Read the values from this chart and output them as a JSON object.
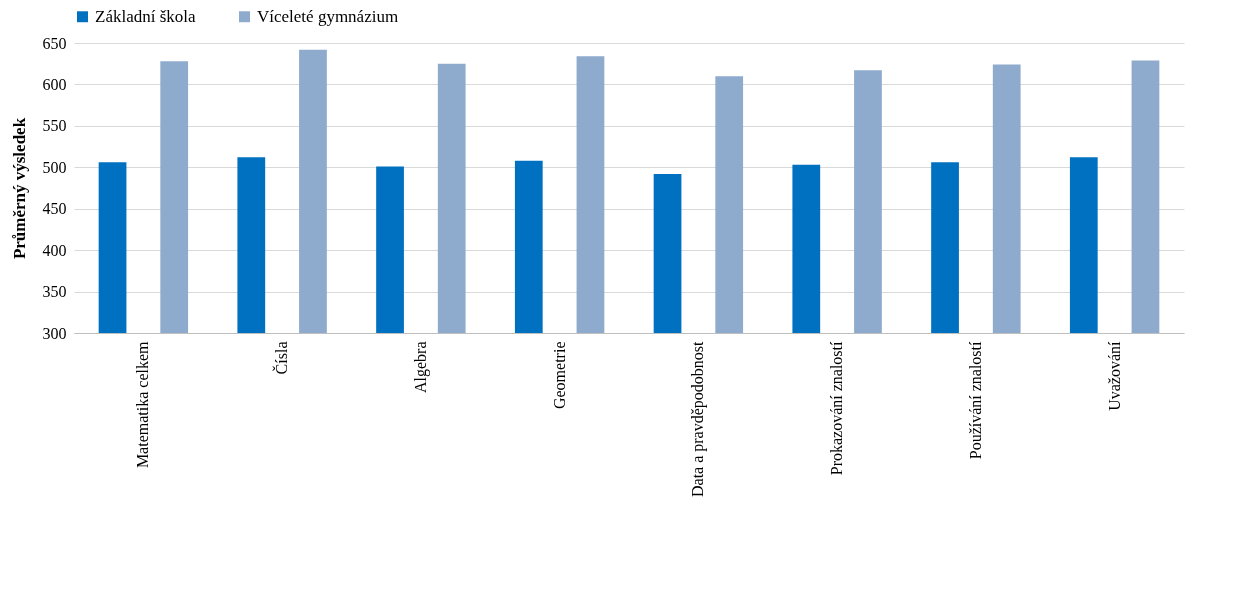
{
  "chart_data": {
    "type": "bar",
    "ylabel": "Průměrný výsledek",
    "categories": [
      "Matematika celkem",
      "Čísla",
      "Algebra",
      "Geometrie",
      "Data a pravděpodobnost",
      "Prokazování znalostí",
      "Používání znalostí",
      "Uvažování"
    ],
    "series": [
      {
        "name": "Základní škola",
        "color": "#0070c0",
        "values": [
          506,
          512,
          501,
          508,
          492,
          503,
          506,
          512
        ]
      },
      {
        "name": "Víceleté gymnázium",
        "color": "#8eaacc",
        "values": [
          628,
          642,
          625,
          634,
          610,
          617,
          624,
          629
        ]
      }
    ],
    "ylim": [
      300,
      650
    ],
    "yticks": [
      300,
      350,
      400,
      450,
      500,
      550,
      600,
      650
    ],
    "grid": "y",
    "legend": "top"
  }
}
